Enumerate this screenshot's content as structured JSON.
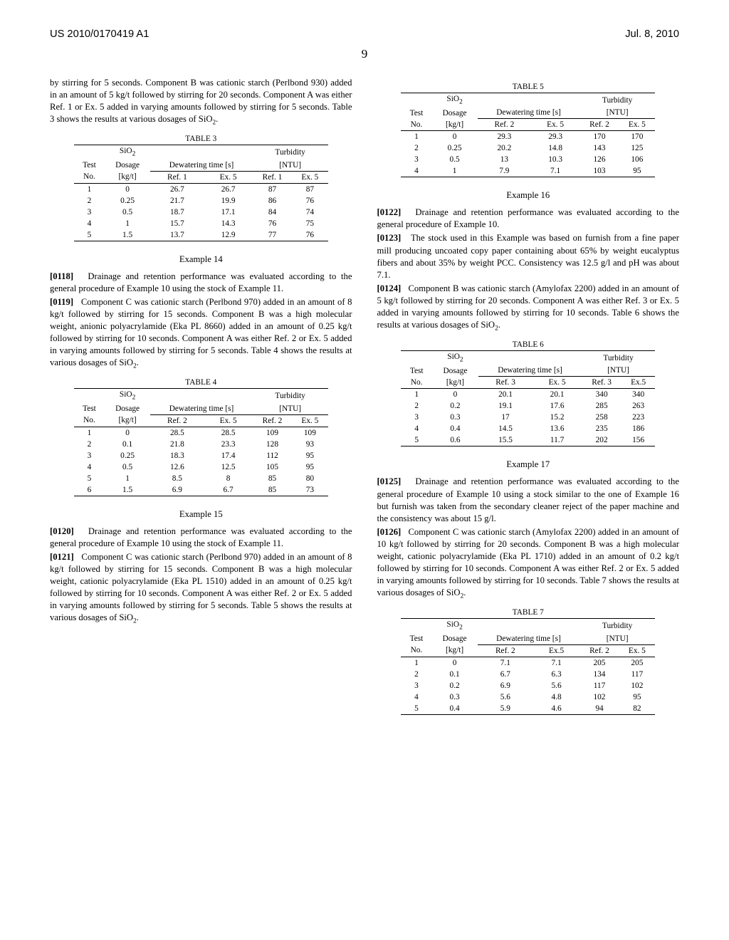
{
  "header": {
    "doc_number": "US 2010/0170419 A1",
    "date": "Jul. 8, 2010",
    "page_number": "9"
  },
  "left_column": {
    "intro_text": "by stirring for 5 seconds. Component B was cationic starch (Perlbond 930) added in an amount of 5 kg/t followed by stirring for 20 seconds. Component A was either Ref. 1 or Ex. 5 added in varying amounts followed by stirring for 5 seconds. Table 3 shows the results at various dosages of SiO",
    "table3": {
      "caption": "TABLE 3",
      "header1_col2": "SiO",
      "header1_col3": "Dosage",
      "header1_col4": "Dewatering time [s]",
      "header1_col5": "Turbidity [NTU]",
      "header2_col1": "Test",
      "header2_col2": "No.",
      "header2_col3": "[kg/t]",
      "header2_col4": "Ref. 1",
      "header2_col5": "Ex. 5",
      "header2_col6": "Ref. 1",
      "header2_col7": "Ex. 5",
      "rows": [
        [
          "1",
          "0",
          "26.7",
          "26.7",
          "87",
          "87"
        ],
        [
          "2",
          "0.25",
          "21.7",
          "19.9",
          "86",
          "76"
        ],
        [
          "3",
          "0.5",
          "18.7",
          "17.1",
          "84",
          "74"
        ],
        [
          "4",
          "1",
          "15.7",
          "14.3",
          "76",
          "75"
        ],
        [
          "5",
          "1.5",
          "13.7",
          "12.9",
          "77",
          "76"
        ]
      ]
    },
    "example14_heading": "Example 14",
    "para_0118_num": "[0118]",
    "para_0118": "Drainage and retention performance was evaluated according to the general procedure of Example 10 using the stock of Example 11.",
    "para_0119_num": "[0119]",
    "para_0119": "Component C was cationic starch (Perlbond 970) added in an amount of 8 kg/t followed by stirring for 15 seconds. Component B was a high molecular weight, anionic polyacrylamide (Eka PL 8660) added in an amount of 0.25 kg/t followed by stirring for 10 seconds. Component A was either Ref. 2 or Ex. 5 added in varying amounts followed by stirring for 5 seconds. Table 4 shows the results at various dosages of SiO",
    "table4": {
      "caption": "TABLE 4",
      "rows": [
        [
          "1",
          "0",
          "28.5",
          "28.5",
          "109",
          "109"
        ],
        [
          "2",
          "0.1",
          "21.8",
          "23.3",
          "128",
          "93"
        ],
        [
          "3",
          "0.25",
          "18.3",
          "17.4",
          "112",
          "95"
        ],
        [
          "4",
          "0.5",
          "12.6",
          "12.5",
          "105",
          "95"
        ],
        [
          "5",
          "1",
          "8.5",
          "8",
          "85",
          "80"
        ],
        [
          "6",
          "1.5",
          "6.9",
          "6.7",
          "85",
          "73"
        ]
      ],
      "ref_col": "Ref. 2"
    },
    "example15_heading": "Example 15",
    "para_0120_num": "[0120]",
    "para_0120": "Drainage and retention performance was evaluated according to the general procedure of Example 10 using the stock of Example 11.",
    "para_0121_num": "[0121]",
    "para_0121": "Component C was cationic starch (Perlbond 970) added in an amount of 8 kg/t followed by stirring for 15 seconds. Component B was a high molecular weight, cationic polyacrylamide (Eka PL 1510) added in an amount of 0.25 kg/t followed by stirring for 10 seconds. Component A was either Ref. 2 or Ex. 5 added in varying amounts followed by stirring for 5 seconds. Table 5 shows the results at various dosages of SiO"
  },
  "right_column": {
    "table5": {
      "caption": "TABLE 5",
      "ref_col": "Ref. 2",
      "rows": [
        [
          "1",
          "0",
          "29.3",
          "29.3",
          "170",
          "170"
        ],
        [
          "2",
          "0.25",
          "20.2",
          "14.8",
          "143",
          "125"
        ],
        [
          "3",
          "0.5",
          "13",
          "10.3",
          "126",
          "106"
        ],
        [
          "4",
          "1",
          "7.9",
          "7.1",
          "103",
          "95"
        ]
      ]
    },
    "example16_heading": "Example 16",
    "para_0122_num": "[0122]",
    "para_0122": "Drainage and retention performance was evaluated according to the general procedure of Example 10.",
    "para_0123_num": "[0123]",
    "para_0123": "The stock used in this Example was based on furnish from a fine paper mill producing uncoated copy paper containing about 65% by weight eucalyptus fibers and about 35% by weight PCC. Consistency was 12.5 g/l and pH was about 7.1.",
    "para_0124_num": "[0124]",
    "para_0124": "Component B was cationic starch (Amylofax 2200) added in an amount of 5 kg/t followed by stirring for 20 seconds. Component A was either Ref. 3 or Ex. 5 added in varying amounts followed by stirring for 10 seconds. Table 6 shows the results at various dosages of SiO",
    "table6": {
      "caption": "TABLE 6",
      "ref_col": "Ref. 3",
      "ex_col": "Ex.5",
      "rows": [
        [
          "1",
          "0",
          "20.1",
          "20.1",
          "340",
          "340"
        ],
        [
          "2",
          "0.2",
          "19.1",
          "17.6",
          "285",
          "263"
        ],
        [
          "3",
          "0.3",
          "17",
          "15.2",
          "258",
          "223"
        ],
        [
          "4",
          "0.4",
          "14.5",
          "13.6",
          "235",
          "186"
        ],
        [
          "5",
          "0.6",
          "15.5",
          "11.7",
          "202",
          "156"
        ]
      ]
    },
    "example17_heading": "Example 17",
    "para_0125_num": "[0125]",
    "para_0125": "Drainage and retention performance was evaluated according to the general procedure of Example 10 using a stock similar to the one of Example 16 but furnish was taken from the secondary cleaner reject of the paper machine and the consistency was about 15 g/l.",
    "para_0126_num": "[0126]",
    "para_0126": "Component C was cationic starch (Amylofax 2200) added in an amount of 10 kg/t followed by stirring for 20 seconds. Component B was a high molecular weight, cationic polyacrylamide (Eka PL 1710) added in an amount of 0.2 kg/t followed by stirring for 10 seconds. Component A was either Ref. 2 or Ex. 5 added in varying amounts followed by stirring for 10 seconds. Table 7 shows the results at various dosages of SiO",
    "table7": {
      "caption": "TABLE 7",
      "ref_col": "Ref. 2",
      "ex_col": "Ex.5",
      "rows": [
        [
          "1",
          "0",
          "7.1",
          "7.1",
          "205",
          "205"
        ],
        [
          "2",
          "0.1",
          "6.7",
          "6.3",
          "134",
          "117"
        ],
        [
          "3",
          "0.2",
          "6.9",
          "5.6",
          "117",
          "102"
        ],
        [
          "4",
          "0.3",
          "5.6",
          "4.8",
          "102",
          "95"
        ],
        [
          "5",
          "0.4",
          "5.9",
          "4.6",
          "94",
          "82"
        ]
      ]
    }
  },
  "common": {
    "sio2_label": "SiO",
    "dosage_label": "Dosage",
    "dewatering_label": "Dewatering time [s]",
    "turbidity_label": "Turbidity",
    "ntu_label": "[NTU]",
    "test_label": "Test",
    "no_label": "No.",
    "kgt_label": "[kg/t]",
    "ex5_label": "Ex. 5"
  }
}
